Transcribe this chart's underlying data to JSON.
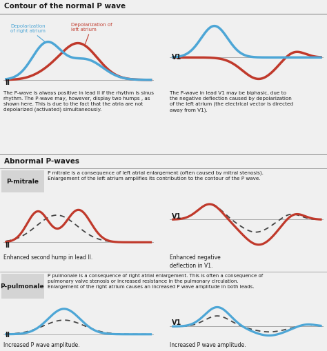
{
  "title_normal": "Contour of the normal P wave",
  "title_abnormal": "Abnormal P-waves",
  "label_pmitrale": "P-mitrale",
  "label_ppulmonale": "P-pulmonale",
  "text_pmitrale": "P mitrale is a consequence of left atrial enlargement (often caused by mitral stenosis).\nEnlargement of the left atrium amplifies its contribution to the contour of the P wave.",
  "text_ppulmonale": "P pulmonale is a consequence of right atrial enlargement. This is often a consequence of\npulmonary valve stenosis or increased resistance in the pulmonary circulation.\nEnlargement of the right atrium causes an increased P wave amplitude in both leads.",
  "text_normal_II": "The P-wave is always positive in lead II if the rhythm is sinus\nrhythm. The P-wave may, however, display two humps , as\nshown here. This is due to the fact that the atria are not\ndepolarized (activated) simultaneously.",
  "text_normal_V1": "The P-wave in lead V1 may be biphasic, due to\nthe negative deflection caused by depolarization\nof the left atrium (the electrical vector is directed\naway from V1).",
  "label_right": "Depolarization\nof right atrium",
  "label_left": "Depolarization of\nleft atrium",
  "caption_mitrale_II": "Enhanced second hump in lead II.",
  "caption_mitrale_V1": "Enhanced negative\ndeflection in V1.",
  "caption_pulmonale_II": "Increased P wave amplitude.",
  "caption_pulmonale_V1": "Increased P wave amplitude.",
  "blue": "#4da6d6",
  "red": "#c0392b",
  "dashed_color": "#444444",
  "bg_color": "#f0f0f0",
  "section_bg": "#d4d4d4",
  "text_color": "#1a1a1a",
  "line_color": "#888888"
}
